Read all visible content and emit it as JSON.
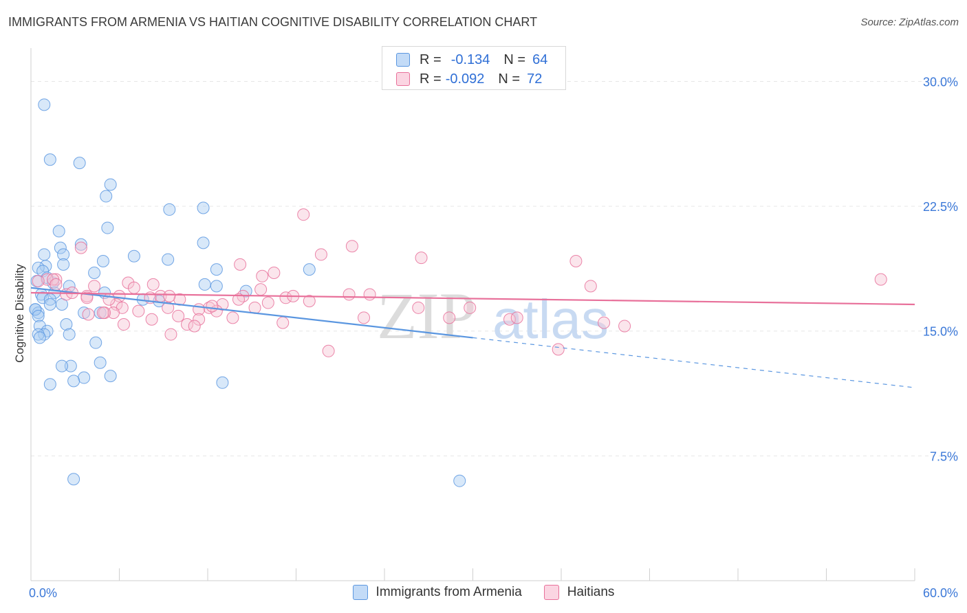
{
  "title": "IMMIGRANTS FROM ARMENIA VS HAITIAN COGNITIVE DISABILITY CORRELATION CHART",
  "source": "Source: ZipAtlas.com",
  "watermark": {
    "zip": "ZIP",
    "atlas": "atlas"
  },
  "legend_top": {
    "rows": [
      {
        "r_label": "R =",
        "r_value": "-0.134",
        "n_label": "N =",
        "n_value": "64",
        "color": "#9cc3ef"
      },
      {
        "r_label": "R =",
        "r_value": "-0.092",
        "n_label": "N =",
        "n_value": "72",
        "color": "#f5b6cb"
      }
    ]
  },
  "legend_bottom": [
    {
      "label": "Immigrants from Armenia",
      "color": "#9cc3ef"
    },
    {
      "label": "Haitians",
      "color": "#f5b6cb"
    }
  ],
  "chart_data": {
    "type": "scatter",
    "title": "IMMIGRANTS FROM ARMENIA VS HAITIAN COGNITIVE DISABILITY CORRELATION CHART",
    "xlabel": "",
    "ylabel": "Cognitive Disability",
    "xlim": [
      0,
      60
    ],
    "ylim": [
      0,
      32
    ],
    "x_tick_labels": [
      "0.0%",
      "60.0%"
    ],
    "y_ticks": [
      7.5,
      15.0,
      22.5,
      30.0
    ],
    "y_tick_labels": [
      "7.5%",
      "15.0%",
      "22.5%",
      "30.0%"
    ],
    "grid": true,
    "legend_placement": "top-center",
    "series": [
      {
        "name": "Immigrants from Armenia",
        "color": "#5a96e0",
        "fill": "#a9cbf2",
        "trend": {
          "x": [
            0,
            30,
            60
          ],
          "y": [
            17.6,
            14.6,
            11.6
          ],
          "solid_until": 30
        },
        "points": [
          [
            0.9,
            28.6
          ],
          [
            1.3,
            25.3
          ],
          [
            3.3,
            25.1
          ],
          [
            5.4,
            23.8
          ],
          [
            5.1,
            23.1
          ],
          [
            11.7,
            22.4
          ],
          [
            9.4,
            22.3
          ],
          [
            5.2,
            21.2
          ],
          [
            1.9,
            21.0
          ],
          [
            11.7,
            20.3
          ],
          [
            3.4,
            20.2
          ],
          [
            2.0,
            20.0
          ],
          [
            2.2,
            19.6
          ],
          [
            7.0,
            19.5
          ],
          [
            9.3,
            19.3
          ],
          [
            4.9,
            19.2
          ],
          [
            2.2,
            19.0
          ],
          [
            1.0,
            18.9
          ],
          [
            0.5,
            18.8
          ],
          [
            18.9,
            18.7
          ],
          [
            12.6,
            18.7
          ],
          [
            0.8,
            18.6
          ],
          [
            4.3,
            18.5
          ],
          [
            1.1,
            18.2
          ],
          [
            0.4,
            18.0
          ],
          [
            1.5,
            17.9
          ],
          [
            11.8,
            17.8
          ],
          [
            12.6,
            17.7
          ],
          [
            2.6,
            17.7
          ],
          [
            14.6,
            17.4
          ],
          [
            1.6,
            17.3
          ],
          [
            0.7,
            17.2
          ],
          [
            0.8,
            17.0
          ],
          [
            1.3,
            16.9
          ],
          [
            8.7,
            16.8
          ],
          [
            2.1,
            16.6
          ],
          [
            1.3,
            16.6
          ],
          [
            0.3,
            16.3
          ],
          [
            0.5,
            16.1
          ],
          [
            0.3,
            16.3
          ],
          [
            3.6,
            16.1
          ],
          [
            4.7,
            16.1
          ],
          [
            0.5,
            15.9
          ],
          [
            2.4,
            15.4
          ],
          [
            0.6,
            15.3
          ],
          [
            1.1,
            15.0
          ],
          [
            0.9,
            14.8
          ],
          [
            0.5,
            14.8
          ],
          [
            0.6,
            14.6
          ],
          [
            2.6,
            14.8
          ],
          [
            4.4,
            14.3
          ],
          [
            4.7,
            13.1
          ],
          [
            2.7,
            12.9
          ],
          [
            2.1,
            12.9
          ],
          [
            5.4,
            12.3
          ],
          [
            3.6,
            12.2
          ],
          [
            2.9,
            12.0
          ],
          [
            1.3,
            11.8
          ],
          [
            13.0,
            11.9
          ],
          [
            2.9,
            6.1
          ],
          [
            29.1,
            6.0
          ],
          [
            0.9,
            19.6
          ],
          [
            5.0,
            17.3
          ],
          [
            7.6,
            16.9
          ]
        ]
      },
      {
        "name": "Haitians",
        "color": "#e8709a",
        "fill": "#f7c5d5",
        "trend": {
          "x": [
            0,
            60
          ],
          "y": [
            17.3,
            16.6
          ],
          "solid_until": 60
        },
        "points": [
          [
            18.5,
            22.0
          ],
          [
            21.8,
            20.1
          ],
          [
            3.4,
            20.0
          ],
          [
            19.7,
            19.6
          ],
          [
            26.5,
            19.4
          ],
          [
            37.0,
            19.2
          ],
          [
            14.2,
            19.0
          ],
          [
            16.5,
            18.5
          ],
          [
            15.7,
            18.3
          ],
          [
            57.7,
            18.1
          ],
          [
            1.7,
            18.1
          ],
          [
            1.1,
            18.1
          ],
          [
            0.5,
            18.0
          ],
          [
            1.5,
            18.1
          ],
          [
            6.6,
            17.9
          ],
          [
            8.3,
            17.8
          ],
          [
            1.7,
            17.8
          ],
          [
            4.3,
            17.7
          ],
          [
            7.0,
            17.6
          ],
          [
            38.0,
            17.7
          ],
          [
            15.6,
            17.5
          ],
          [
            8.8,
            17.1
          ],
          [
            2.4,
            17.2
          ],
          [
            3.8,
            17.1
          ],
          [
            10.1,
            16.9
          ],
          [
            14.4,
            17.1
          ],
          [
            6.0,
            17.1
          ],
          [
            9.4,
            17.1
          ],
          [
            17.3,
            17.0
          ],
          [
            8.1,
            17.0
          ],
          [
            14.1,
            16.9
          ],
          [
            16.1,
            16.7
          ],
          [
            13.0,
            16.6
          ],
          [
            3.8,
            17.0
          ],
          [
            5.8,
            16.6
          ],
          [
            6.2,
            16.4
          ],
          [
            9.3,
            16.4
          ],
          [
            12.1,
            16.4
          ],
          [
            15.2,
            16.4
          ],
          [
            11.4,
            16.3
          ],
          [
            12.6,
            16.2
          ],
          [
            26.3,
            16.4
          ],
          [
            29.8,
            16.4
          ],
          [
            22.6,
            15.8
          ],
          [
            5.6,
            16.1
          ],
          [
            5.0,
            16.1
          ],
          [
            7.3,
            16.2
          ],
          [
            3.9,
            16.0
          ],
          [
            10.0,
            15.9
          ],
          [
            11.4,
            15.7
          ],
          [
            13.7,
            15.8
          ],
          [
            8.2,
            15.7
          ],
          [
            28.4,
            15.8
          ],
          [
            32.5,
            15.7
          ],
          [
            33.0,
            15.8
          ],
          [
            38.9,
            15.5
          ],
          [
            40.3,
            15.3
          ],
          [
            17.1,
            15.5
          ],
          [
            10.6,
            15.4
          ],
          [
            11.1,
            15.3
          ],
          [
            6.3,
            15.4
          ],
          [
            9.5,
            14.8
          ],
          [
            20.2,
            13.8
          ],
          [
            35.8,
            13.9
          ],
          [
            21.6,
            17.2
          ],
          [
            23.0,
            17.2
          ],
          [
            17.8,
            17.1
          ],
          [
            18.9,
            16.8
          ],
          [
            5.3,
            16.9
          ],
          [
            4.9,
            16.1
          ],
          [
            2.8,
            17.3
          ],
          [
            12.3,
            16.5
          ]
        ]
      }
    ]
  }
}
